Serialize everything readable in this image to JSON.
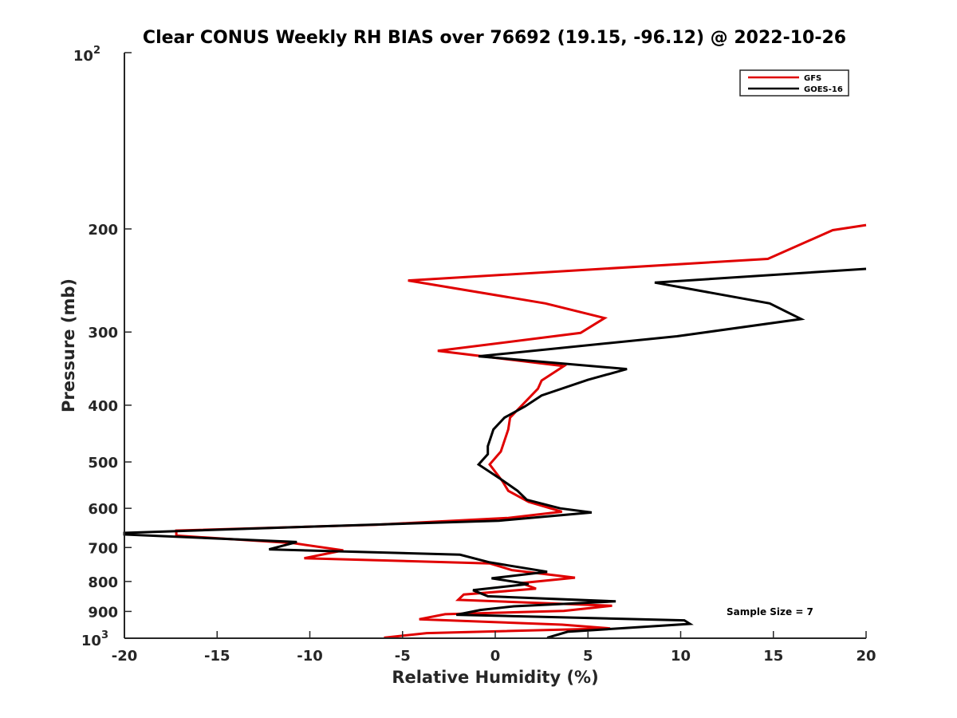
{
  "chart_data": {
    "type": "line",
    "title": "Clear CONUS Weekly RH BIAS over 76692 (19.15, -96.12) @ 2022-10-26",
    "xlabel": "Relative Humidity (%)",
    "ylabel": "Pressure (mb)",
    "xlim": [
      -20,
      20
    ],
    "ylim": [
      100,
      1000
    ],
    "yscale": "log",
    "yreversed": true,
    "x_ticks": [
      -20,
      -15,
      -10,
      -5,
      0,
      5,
      10,
      15,
      20
    ],
    "x_tick_labels": [
      "-20",
      "-15",
      "-10",
      "-5",
      "0",
      "5",
      "10",
      "15",
      "20"
    ],
    "y_ticks": [
      200,
      300,
      400,
      500,
      600,
      700,
      800,
      900
    ],
    "y_tick_labels": [
      "200",
      "300",
      "400",
      "500",
      "600",
      "700",
      "800",
      "900"
    ],
    "y_top_label": {
      "base": "10",
      "exp": "2"
    },
    "y_bottom_label": {
      "base": "10",
      "exp": "3"
    },
    "legend_position": "top-right",
    "annotation": "Sample Size = 7",
    "series": [
      {
        "name": "GFS",
        "color": "#e00000",
        "points": [
          [
            20,
            197
          ],
          [
            18.2,
            201
          ],
          [
            14.7,
            225
          ],
          [
            -4.7,
            245
          ],
          [
            2.7,
            268
          ],
          [
            5.9,
            284
          ],
          [
            4.6,
            301
          ],
          [
            -3.1,
            323
          ],
          [
            3.7,
            343
          ],
          [
            2.5,
            363
          ],
          [
            2.3,
            375
          ],
          [
            0.8,
            420
          ],
          [
            0.7,
            440
          ],
          [
            0.3,
            480
          ],
          [
            -0.3,
            505
          ],
          [
            0.4,
            540
          ],
          [
            0.7,
            560
          ],
          [
            1.8,
            585
          ],
          [
            3.6,
            608
          ],
          [
            0.7,
            623
          ],
          [
            -6.4,
            640
          ],
          [
            -17.2,
            655
          ],
          [
            -17.2,
            668
          ],
          [
            -10.9,
            688
          ],
          [
            -8.2,
            708
          ],
          [
            -10.3,
            730
          ],
          [
            -0.3,
            745
          ],
          [
            0.9,
            765
          ],
          [
            4.3,
            788
          ],
          [
            1.4,
            805
          ],
          [
            2.2,
            823
          ],
          [
            -1.7,
            842
          ],
          [
            -2,
            860
          ],
          [
            6.3,
            880
          ],
          [
            3.7,
            898
          ],
          [
            -2.7,
            910
          ],
          [
            -4.1,
            928
          ],
          [
            3.6,
            948
          ],
          [
            6.2,
            962
          ],
          [
            -3.7,
            980
          ],
          [
            -6,
            998
          ]
        ]
      },
      {
        "name": "GOES-16",
        "color": "#000000",
        "points": [
          [
            20,
            234
          ],
          [
            8.6,
            247
          ],
          [
            14.8,
            268
          ],
          [
            16.5,
            285
          ],
          [
            9.8,
            305
          ],
          [
            -0.9,
            330
          ],
          [
            7.1,
            347
          ],
          [
            5,
            362
          ],
          [
            2.5,
            385
          ],
          [
            1.6,
            402
          ],
          [
            0.5,
            420
          ],
          [
            -0.1,
            440
          ],
          [
            -0.4,
            470
          ],
          [
            -0.4,
            485
          ],
          [
            -0.9,
            505
          ],
          [
            0.3,
            535
          ],
          [
            1.2,
            560
          ],
          [
            1.7,
            580
          ],
          [
            3.5,
            600
          ],
          [
            5.2,
            610
          ],
          [
            0.2,
            630
          ],
          [
            -10.1,
            645
          ],
          [
            -20,
            661
          ],
          [
            -20,
            665
          ],
          [
            -10.7,
            685
          ],
          [
            -12.2,
            705
          ],
          [
            -1.9,
            720
          ],
          [
            -0.3,
            742
          ],
          [
            2.8,
            770
          ],
          [
            -0.2,
            790
          ],
          [
            1.8,
            808
          ],
          [
            -1.2,
            828
          ],
          [
            -0.4,
            848
          ],
          [
            6.5,
            865
          ],
          [
            1,
            882
          ],
          [
            -0.8,
            895
          ],
          [
            -2.1,
            912
          ],
          [
            10.2,
            932
          ],
          [
            10.5,
            945
          ],
          [
            3.9,
            975
          ],
          [
            2.8,
            998
          ]
        ]
      }
    ]
  }
}
